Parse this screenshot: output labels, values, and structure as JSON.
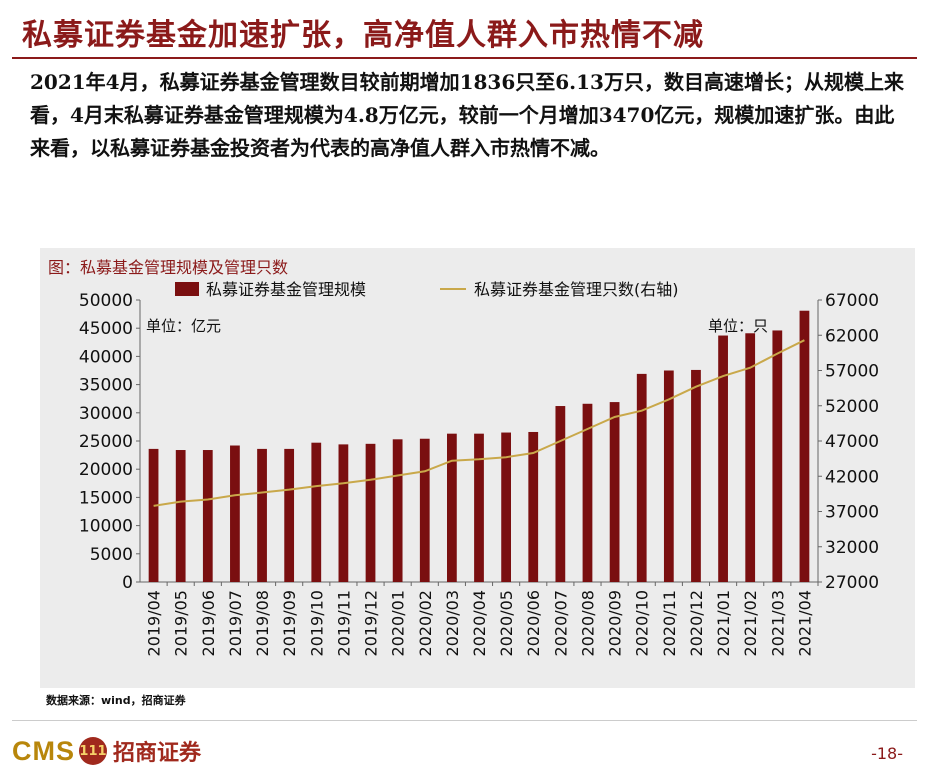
{
  "header": {
    "title": "私募证券基金加速扩张，高净值人群入市热情不减"
  },
  "summary_text": "2021年4月，私募证券基金管理数目较前期增加1836只至6.13万只，数目高速增长；从规模上来看，4月末私募证券基金管理规模为4.8万亿元，较前一个月增加3470亿元，规模加速扩张。由此来看，以私募证券基金投资者为代表的高净值人群入市热情不减。",
  "chart_caption": "图：私募基金管理规模及管理只数",
  "source": "数据来源：wind，招商证券",
  "footer": {
    "logo_text": "CMS",
    "logo_mark": "111",
    "logo_cn": "招商证券",
    "page_number": "-18-"
  },
  "colors": {
    "accent": "#8b1a1a",
    "bar": "#7a0f10",
    "line": "#c9a84a",
    "panel": "#ececec"
  },
  "chart_data": {
    "type": "bar",
    "categories": [
      "2019/04",
      "2019/05",
      "2019/06",
      "2019/07",
      "2019/08",
      "2019/09",
      "2019/10",
      "2019/11",
      "2019/12",
      "2020/01",
      "2020/02",
      "2020/03",
      "2020/04",
      "2020/05",
      "2020/06",
      "2020/07",
      "2020/08",
      "2020/09",
      "2020/10",
      "2020/11",
      "2020/12",
      "2021/01",
      "2021/02",
      "2021/03",
      "2021/04"
    ],
    "series": [
      {
        "name": "私募证券基金管理规模",
        "type": "bar",
        "axis": "left",
        "values": [
          23600,
          23400,
          23400,
          24200,
          23600,
          23600,
          24700,
          24400,
          24500,
          25300,
          25400,
          26300,
          26300,
          26500,
          26600,
          31200,
          31600,
          31900,
          36900,
          37500,
          37600,
          43700,
          44100,
          44600,
          48100
        ]
      },
      {
        "name": "私募证券基金管理只数(右轴)",
        "type": "line",
        "axis": "right",
        "values": [
          37800,
          38400,
          38700,
          39300,
          39700,
          40100,
          40600,
          41000,
          41500,
          42100,
          42700,
          44200,
          44400,
          44700,
          45300,
          47000,
          48700,
          50400,
          51300,
          52900,
          54700,
          56200,
          57400,
          59400,
          61300
        ]
      }
    ],
    "left_axis": {
      "unit_label": "单位：亿元",
      "min": 0,
      "max": 50000,
      "step": 5000,
      "ticks": [
        "0",
        "5000",
        "10000",
        "15000",
        "20000",
        "25000",
        "30000",
        "35000",
        "40000",
        "45000",
        "50000"
      ]
    },
    "right_axis": {
      "unit_label": "单位：只",
      "min": 27000,
      "max": 67000,
      "step": 5000,
      "ticks": [
        "27000",
        "32000",
        "37000",
        "42000",
        "47000",
        "52000",
        "57000",
        "62000",
        "67000"
      ]
    },
    "legend_position": "top",
    "grid": false
  }
}
